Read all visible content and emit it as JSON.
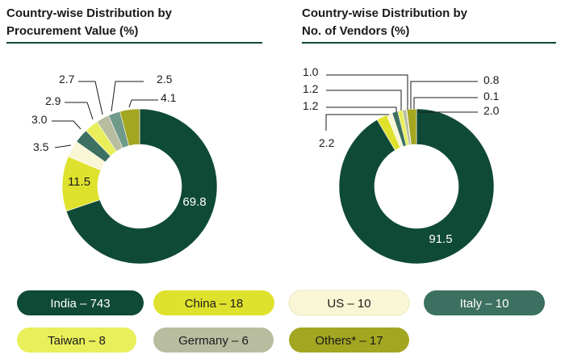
{
  "colors": {
    "India": "#0f4a36",
    "China": "#dfe22d",
    "US": "#f8f6d4",
    "Italy": "#3c7060",
    "Taiwan": "#e9ef5a",
    "Germany": "#b9bda0",
    "Other": "#6f9a8a",
    "Others": "#a3a620",
    "rule": "#0f4a36"
  },
  "legend": [
    {
      "label": "India – 743",
      "color": "#0f4a36",
      "text_color": "#ffffff"
    },
    {
      "label": "China – 18",
      "color": "#dfe22d",
      "text_color": "#1a1a1a"
    },
    {
      "label": "US – 10",
      "color": "#f8f6d4",
      "text_color": "#1a1a1a"
    },
    {
      "label": "Italy – 10",
      "color": "#3c7060",
      "text_color": "#ffffff"
    },
    {
      "label": "Taiwan – 8",
      "color": "#e9ef5a",
      "text_color": "#1a1a1a"
    },
    {
      "label": "Germany – 6",
      "color": "#b9bda0",
      "text_color": "#1a1a1a"
    },
    {
      "label": "Others* – 17",
      "color": "#a3a620",
      "text_color": "#1a1a1a"
    }
  ],
  "chart_data": [
    {
      "type": "pie",
      "title": "Country-wise Distribution by Procurement Value (%)",
      "title_lines": [
        "Country-wise Distribution by",
        "Procurement Value (%)"
      ],
      "donut": true,
      "slices": [
        {
          "key": "India",
          "value": 69.8,
          "label": "69.8"
        },
        {
          "key": "China",
          "value": 11.5,
          "label": "11.5"
        },
        {
          "key": "US",
          "value": 3.5,
          "label": "3.5"
        },
        {
          "key": "Italy",
          "value": 3.0,
          "label": "3.0"
        },
        {
          "key": "Taiwan",
          "value": 2.9,
          "label": "2.9"
        },
        {
          "key": "Germany",
          "value": 2.7,
          "label": "2.7"
        },
        {
          "key": "Other",
          "value": 2.5,
          "label": "2.5"
        },
        {
          "key": "Others",
          "value": 4.1,
          "label": "4.1"
        }
      ]
    },
    {
      "type": "pie",
      "title": "Country-wise Distribution by No. of Vendors (%)",
      "title_lines": [
        "Country-wise Distribution by",
        "No. of Vendors (%)"
      ],
      "donut": true,
      "slices": [
        {
          "key": "India",
          "value": 91.5,
          "label": "91.5"
        },
        {
          "key": "China",
          "value": 2.2,
          "label": "2.2"
        },
        {
          "key": "US",
          "value": 1.2,
          "label": "1.2"
        },
        {
          "key": "Italy",
          "value": 1.2,
          "label": "1.2"
        },
        {
          "key": "Taiwan",
          "value": 1.0,
          "label": "1.0"
        },
        {
          "key": "Germany",
          "value": 0.8,
          "label": "0.8"
        },
        {
          "key": "Other",
          "value": 0.1,
          "label": "0.1"
        },
        {
          "key": "Others",
          "value": 2.0,
          "label": "2.0"
        }
      ]
    }
  ]
}
